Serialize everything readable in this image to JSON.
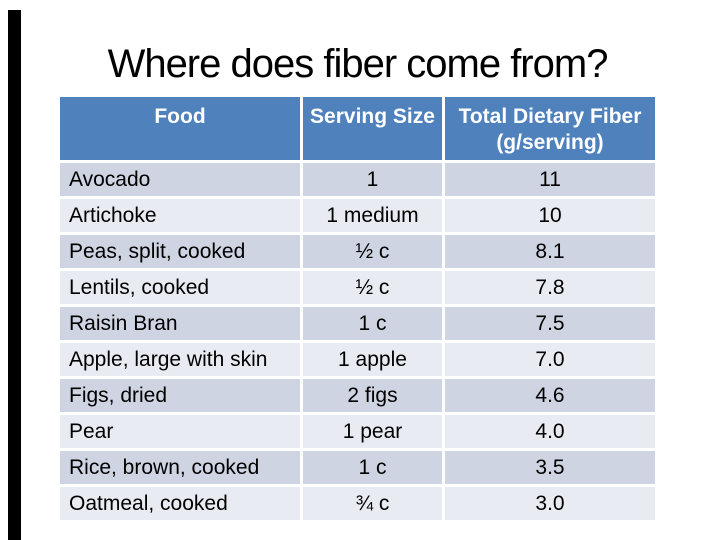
{
  "slide": {
    "title": "Where does fiber come from?"
  },
  "colors": {
    "left_bar": "#000000",
    "title_text": "#000000",
    "header_bg": "#4F81BD",
    "header_text": "#FFFFFF",
    "row_band_dark": "#CED4E2",
    "row_band_light": "#E9EBF2",
    "body_text": "#000000",
    "gridline": "#FFFFFF"
  },
  "header": {
    "food": "Food",
    "serving": "Serving Size",
    "fiber_line1": "Total Dietary Fiber",
    "fiber_line2": "(g/serving)"
  },
  "chart_data": {
    "type": "table",
    "title": "Where does fiber come from?",
    "columns": [
      "Food",
      "Serving Size",
      "Total Dietary Fiber (g/serving)"
    ],
    "rows": [
      [
        "Avocado",
        "1",
        "11"
      ],
      [
        "Artichoke",
        "1 medium",
        "10"
      ],
      [
        "Peas, split, cooked",
        "½ c",
        "8.1"
      ],
      [
        "Lentils, cooked",
        "½ c",
        "7.8"
      ],
      [
        "Raisin Bran",
        "1 c",
        "7.5"
      ],
      [
        "Apple, large with skin",
        "1 apple",
        "7.0"
      ],
      [
        "Figs, dried",
        "2 figs",
        "4.6"
      ],
      [
        "Pear",
        "1 pear",
        "4.0"
      ],
      [
        "Rice, brown, cooked",
        "1 c",
        "3.5"
      ],
      [
        "Oatmeal, cooked",
        "¾ c",
        "3.0"
      ]
    ],
    "layout": {
      "banded_rows": true,
      "header_position": "top",
      "value_alignment": {
        "food": "left",
        "serving": "center",
        "fiber": "center"
      }
    }
  }
}
